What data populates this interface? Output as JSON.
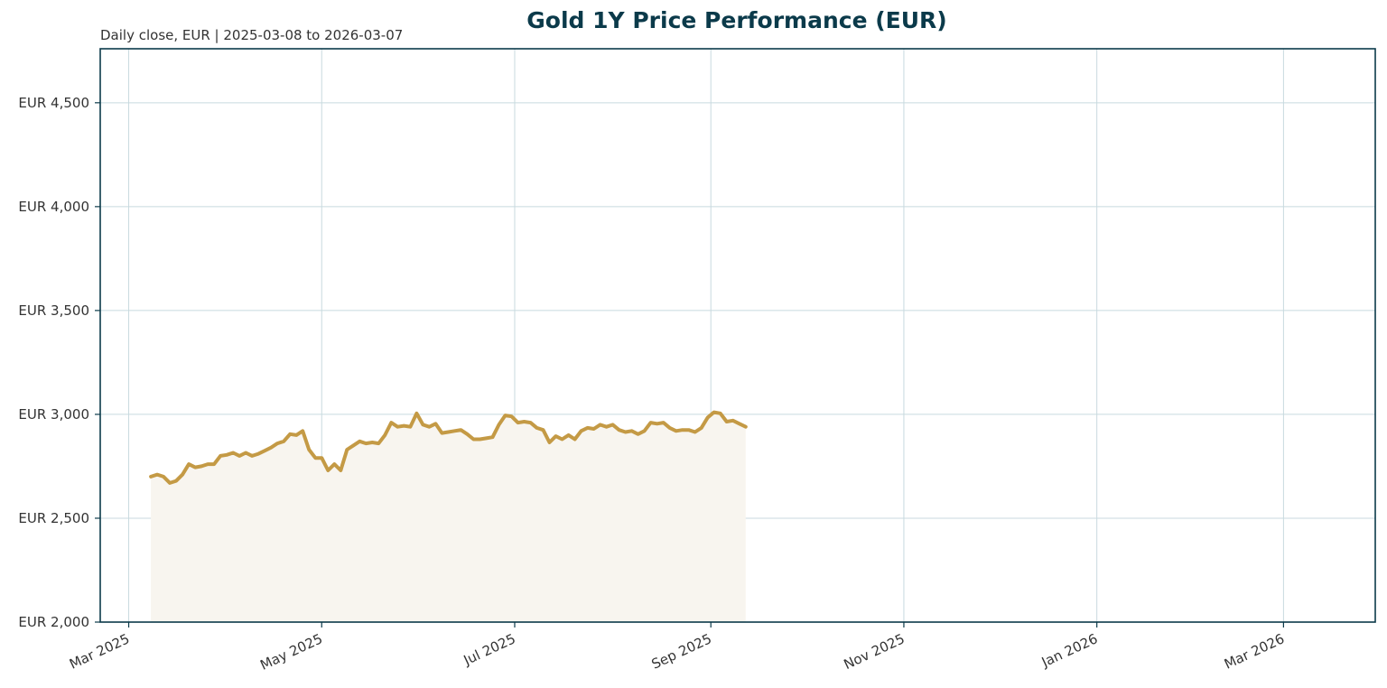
{
  "chart_data": {
    "type": "area",
    "title": "Gold 1Y Price Performance (EUR)",
    "subtitle": "Daily close, EUR | 2025-03-08 to 2026-03-07",
    "xlabel": "",
    "ylabel": "",
    "x_axis": {
      "type": "date",
      "range": [
        "2025-02-20",
        "2026-03-30"
      ],
      "ticks": [
        {
          "date": "2025-03-01",
          "label": "Mar 2025"
        },
        {
          "date": "2025-05-01",
          "label": "May 2025"
        },
        {
          "date": "2025-07-01",
          "label": "Jul 2025"
        },
        {
          "date": "2025-09-01",
          "label": "Sep 2025"
        },
        {
          "date": "2025-11-01",
          "label": "Nov 2025"
        },
        {
          "date": "2026-01-01",
          "label": "Jan 2026"
        },
        {
          "date": "2026-03-01",
          "label": "Mar 2026"
        }
      ]
    },
    "y_axis": {
      "range": [
        2000,
        4760
      ],
      "ticks": [
        {
          "value": 2000,
          "label": "EUR 2,000"
        },
        {
          "value": 2500,
          "label": "EUR 2,500"
        },
        {
          "value": 3000,
          "label": "EUR 3,000"
        },
        {
          "value": 3500,
          "label": "EUR 3,500"
        },
        {
          "value": 4000,
          "label": "EUR 4,000"
        },
        {
          "value": 4500,
          "label": "EUR 4,500"
        }
      ]
    },
    "grid": true,
    "legend": "none",
    "colors": {
      "line": "#c49a45",
      "fill": "#f8f5ef",
      "grid": "#c8dadf",
      "axes": "#0b3a4a",
      "title": "#0b3a4a"
    },
    "series": [
      {
        "values": [
          [
            "2025-03-08",
            2700
          ],
          [
            "2025-03-10",
            2710
          ],
          [
            "2025-03-12",
            2700
          ],
          [
            "2025-03-14",
            2670
          ],
          [
            "2025-03-16",
            2680
          ],
          [
            "2025-03-18",
            2710
          ],
          [
            "2025-03-20",
            2760
          ],
          [
            "2025-03-22",
            2745
          ],
          [
            "2025-03-24",
            2750
          ],
          [
            "2025-03-26",
            2760
          ],
          [
            "2025-03-28",
            2760
          ],
          [
            "2025-03-30",
            2800
          ],
          [
            "2025-04-01",
            2805
          ],
          [
            "2025-04-03",
            2815
          ],
          [
            "2025-04-05",
            2800
          ],
          [
            "2025-04-07",
            2815
          ],
          [
            "2025-04-09",
            2800
          ],
          [
            "2025-04-11",
            2810
          ],
          [
            "2025-04-13",
            2825
          ],
          [
            "2025-04-15",
            2840
          ],
          [
            "2025-04-17",
            2860
          ],
          [
            "2025-04-19",
            2870
          ],
          [
            "2025-04-21",
            2905
          ],
          [
            "2025-04-23",
            2900
          ],
          [
            "2025-04-25",
            2920
          ],
          [
            "2025-04-27",
            2830
          ],
          [
            "2025-04-29",
            2790
          ],
          [
            "2025-05-01",
            2790
          ],
          [
            "2025-05-03",
            2730
          ],
          [
            "2025-05-05",
            2760
          ],
          [
            "2025-05-07",
            2730
          ],
          [
            "2025-05-09",
            2830
          ],
          [
            "2025-05-11",
            2850
          ],
          [
            "2025-05-13",
            2870
          ],
          [
            "2025-05-15",
            2860
          ],
          [
            "2025-05-17",
            2865
          ],
          [
            "2025-05-19",
            2860
          ],
          [
            "2025-05-21",
            2900
          ],
          [
            "2025-05-23",
            2960
          ],
          [
            "2025-05-25",
            2940
          ],
          [
            "2025-05-27",
            2945
          ],
          [
            "2025-05-29",
            2940
          ],
          [
            "2025-05-31",
            3005
          ],
          [
            "2025-06-02",
            2950
          ],
          [
            "2025-06-04",
            2940
          ],
          [
            "2025-06-06",
            2955
          ],
          [
            "2025-06-08",
            2910
          ],
          [
            "2025-06-10",
            2915
          ],
          [
            "2025-06-12",
            2920
          ],
          [
            "2025-06-14",
            2925
          ],
          [
            "2025-06-16",
            2905
          ],
          [
            "2025-06-18",
            2880
          ],
          [
            "2025-06-20",
            2880
          ],
          [
            "2025-06-22",
            2885
          ],
          [
            "2025-06-24",
            2890
          ],
          [
            "2025-06-26",
            2950
          ],
          [
            "2025-06-28",
            2995
          ],
          [
            "2025-06-30",
            2990
          ],
          [
            "2025-07-02",
            2960
          ],
          [
            "2025-07-04",
            2965
          ],
          [
            "2025-07-06",
            2960
          ],
          [
            "2025-07-08",
            2935
          ],
          [
            "2025-07-10",
            2925
          ],
          [
            "2025-07-12",
            2865
          ],
          [
            "2025-07-14",
            2895
          ],
          [
            "2025-07-16",
            2880
          ],
          [
            "2025-07-18",
            2900
          ],
          [
            "2025-07-20",
            2880
          ],
          [
            "2025-07-22",
            2920
          ],
          [
            "2025-07-24",
            2935
          ],
          [
            "2025-07-26",
            2930
          ],
          [
            "2025-07-28",
            2950
          ],
          [
            "2025-07-30",
            2940
          ],
          [
            "2025-08-01",
            2950
          ],
          [
            "2025-08-03",
            2925
          ],
          [
            "2025-08-05",
            2915
          ],
          [
            "2025-08-07",
            2920
          ],
          [
            "2025-08-09",
            2905
          ],
          [
            "2025-08-11",
            2920
          ],
          [
            "2025-08-13",
            2960
          ],
          [
            "2025-08-15",
            2955
          ],
          [
            "2025-08-17",
            2960
          ],
          [
            "2025-08-19",
            2935
          ],
          [
            "2025-08-21",
            2920
          ],
          [
            "2025-08-23",
            2925
          ],
          [
            "2025-08-25",
            2925
          ],
          [
            "2025-08-27",
            2915
          ],
          [
            "2025-08-29",
            2935
          ],
          [
            "2025-08-31",
            2985
          ],
          [
            "2025-09-02",
            3010
          ],
          [
            "2025-09-04",
            3005
          ],
          [
            "2025-09-06",
            2965
          ],
          [
            "2025-09-08",
            2970
          ],
          [
            "2025-09-10",
            2955
          ],
          [
            "2025-09-12",
            2940
          ]
        ]
      }
    ]
  }
}
